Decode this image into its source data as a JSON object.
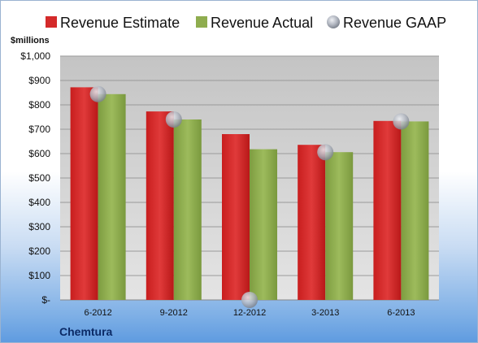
{
  "chart_data": {
    "type": "bar",
    "unit_label": "$millions",
    "company": "Chemtura",
    "categories": [
      "6-2012",
      "9-2012",
      "12-2012",
      "3-2013",
      "6-2013"
    ],
    "ylim": [
      0,
      1000
    ],
    "yticks": [
      0,
      100,
      200,
      300,
      400,
      500,
      600,
      700,
      800,
      900,
      1000
    ],
    "ytick_labels": [
      "$-",
      "$100",
      "$200",
      "$300",
      "$400",
      "$500",
      "$600",
      "$700",
      "$800",
      "$900",
      "$1,000"
    ],
    "grid": true,
    "legend_position": "top",
    "series": [
      {
        "name": "Revenue Estimate",
        "kind": "bar",
        "color": "#d42a2a",
        "values": [
          872,
          773,
          680,
          636,
          734
        ]
      },
      {
        "name": "Revenue Actual",
        "kind": "bar",
        "color": "#8fad4f",
        "values": [
          844,
          740,
          618,
          606,
          732
        ]
      },
      {
        "name": "Revenue GAAP",
        "kind": "marker",
        "color": "#b4b9c3",
        "values": [
          844,
          740,
          0,
          606,
          732
        ]
      }
    ]
  }
}
